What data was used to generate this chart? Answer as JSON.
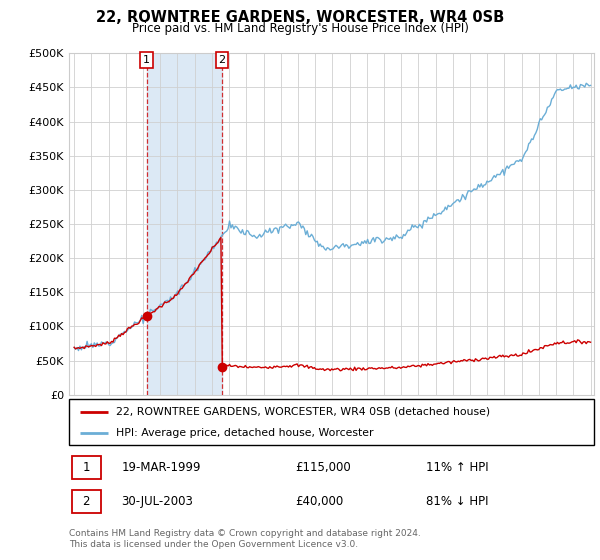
{
  "title": "22, ROWNTREE GARDENS, WORCESTER, WR4 0SB",
  "subtitle": "Price paid vs. HM Land Registry's House Price Index (HPI)",
  "legend_line1": "22, ROWNTREE GARDENS, WORCESTER, WR4 0SB (detached house)",
  "legend_line2": "HPI: Average price, detached house, Worcester",
  "transaction1_date": "19-MAR-1999",
  "transaction1_price": "£115,000",
  "transaction1_hpi": "11% ↑ HPI",
  "transaction2_date": "30-JUL-2003",
  "transaction2_price": "£40,000",
  "transaction2_hpi": "81% ↓ HPI",
  "footer": "Contains HM Land Registry data © Crown copyright and database right 2024.\nThis data is licensed under the Open Government Licence v3.0.",
  "hpi_color": "#6baed6",
  "price_color": "#cc0000",
  "shade_color": "#dce9f5",
  "ylim": [
    0,
    500000
  ],
  "yticks": [
    0,
    50000,
    100000,
    150000,
    200000,
    250000,
    300000,
    350000,
    400000,
    450000,
    500000
  ],
  "transaction1_x": 1999.21,
  "transaction1_y": 115000,
  "transaction2_x": 2003.58,
  "transaction2_y": 40000,
  "vline1_x": 1999.21,
  "vline2_x": 2003.58,
  "xmin": 1995.0,
  "xmax": 2025.0
}
